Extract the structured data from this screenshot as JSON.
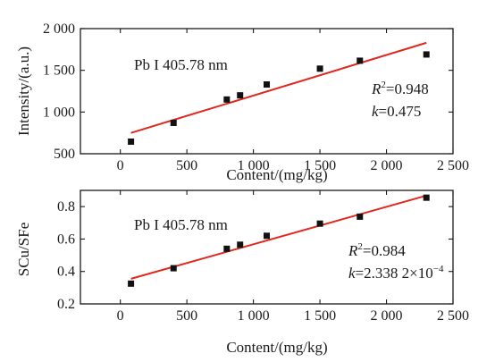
{
  "chart_data": [
    {
      "type": "scatter",
      "xlabel": "Content/(mg/kg)",
      "ylabel": "Intensity/(a.u.)",
      "xlim": [
        -300,
        2500
      ],
      "ylim": [
        500,
        2000
      ],
      "x_ticks": [
        0,
        500,
        1000,
        1500,
        2000,
        2500
      ],
      "x_tick_labels": [
        "0",
        "500",
        "1 000",
        "1 500",
        "2 000",
        "2 500"
      ],
      "y_ticks": [
        500,
        1000,
        1500,
        2000
      ],
      "y_tick_labels": [
        "500",
        "1 000",
        "1 500",
        "2 000"
      ],
      "points": [
        {
          "x": 80,
          "y": 645
        },
        {
          "x": 400,
          "y": 870
        },
        {
          "x": 800,
          "y": 1150
        },
        {
          "x": 900,
          "y": 1200
        },
        {
          "x": 1100,
          "y": 1330
        },
        {
          "x": 1500,
          "y": 1520
        },
        {
          "x": 1800,
          "y": 1615
        },
        {
          "x": 2300,
          "y": 1690
        }
      ],
      "fit": {
        "x": [
          80,
          2300
        ],
        "y": [
          750,
          1830
        ],
        "color": "#e0281e"
      },
      "annotation_line": "Pb I 405.78 nm",
      "r2_label": "R",
      "r2_sup": "2",
      "r2_value": "=0.948",
      "k_label": "k",
      "k_value": "=0.475",
      "k_exp": ""
    },
    {
      "type": "scatter",
      "xlabel": "Content/(mg/kg)",
      "ylabel": "SCu/SFe",
      "xlim": [
        -300,
        2500
      ],
      "ylim": [
        0.2,
        0.9
      ],
      "x_ticks": [
        0,
        500,
        1000,
        1500,
        2000,
        2500
      ],
      "x_tick_labels": [
        "0",
        "500",
        "1 000",
        "1 500",
        "2 000",
        "2 500"
      ],
      "y_ticks": [
        0.2,
        0.4,
        0.6,
        0.8
      ],
      "y_tick_labels": [
        "0.2",
        "0.4",
        "0.6",
        "0.8"
      ],
      "points": [
        {
          "x": 80,
          "y": 0.325
        },
        {
          "x": 400,
          "y": 0.42
        },
        {
          "x": 800,
          "y": 0.54
        },
        {
          "x": 900,
          "y": 0.565
        },
        {
          "x": 1100,
          "y": 0.62
        },
        {
          "x": 1500,
          "y": 0.695
        },
        {
          "x": 1800,
          "y": 0.738
        },
        {
          "x": 2300,
          "y": 0.855
        }
      ],
      "fit": {
        "x": [
          80,
          2300
        ],
        "y": [
          0.355,
          0.868
        ],
        "color": "#e0281e"
      },
      "annotation_line": "Pb I 405.78 nm",
      "r2_label": "R",
      "r2_sup": "2",
      "r2_value": "=0.984",
      "k_label": "k",
      "k_value": "=2.338 2×10",
      "k_exp": "−4"
    }
  ]
}
